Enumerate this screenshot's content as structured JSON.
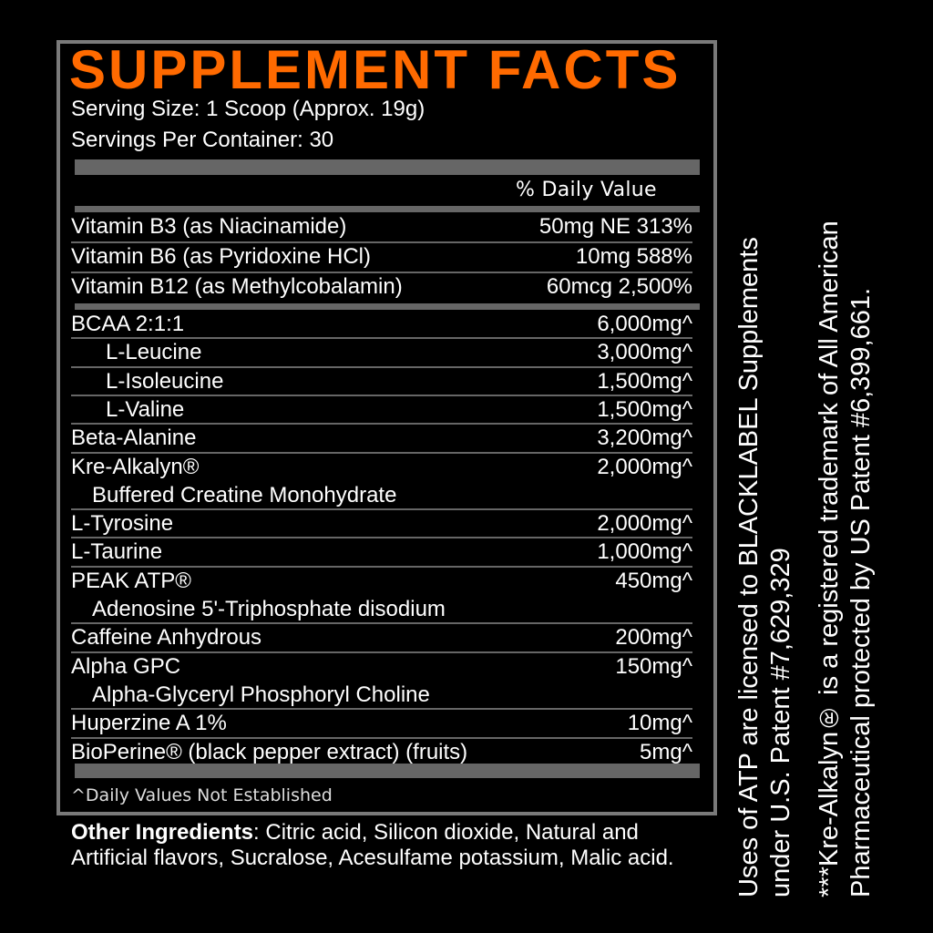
{
  "title": "SUPPLEMENT FACTS",
  "serving_size": "Serving Size:   1 Scoop (Approx. 19g)",
  "servings_per_container": "Servings Per Container: 30",
  "daily_value_header": "% Daily Value",
  "vitamins": [
    {
      "name": "Vitamin B3 (as Niacinamide)",
      "value": "50mg NE 313%"
    },
    {
      "name": "Vitamin B6 (as Pyridoxine HCl)",
      "value": "10mg 588%"
    },
    {
      "name": "Vitamin B12 (as Methylcobalamin)",
      "value": "60mcg 2,500%"
    }
  ],
  "ingredients": [
    {
      "name": "BCAA 2:1:1",
      "value": "6,000mg^"
    },
    {
      "name": "L-Leucine",
      "value": "3,000mg^"
    },
    {
      "name": "L-Isoleucine",
      "value": "1,500mg^"
    },
    {
      "name": "L-Valine",
      "value": "1,500mg^"
    },
    {
      "name": "Beta-Alanine",
      "value": "3,200mg^"
    },
    {
      "name": "Kre-Alkalyn®",
      "value": "2,000mg^",
      "sub": "Buffered Creatine Monohydrate"
    },
    {
      "name": "L-Tyrosine",
      "value": "2,000mg^"
    },
    {
      "name": "L-Taurine",
      "value": "1,000mg^"
    },
    {
      "name": "PEAK ATP®",
      "value": "450mg^",
      "sub": "Adenosine 5'-Triphosphate disodium"
    },
    {
      "name": "Caffeine Anhydrous",
      "value": "200mg^"
    },
    {
      "name": "Alpha GPC",
      "value": "150mg^",
      "sub": "Alpha-Glyceryl Phosphoryl Choline"
    },
    {
      "name": "Huperzine A 1%",
      "value": "10mg^"
    },
    {
      "name": "BioPerine® (black pepper extract) (fruits)",
      "value": "5mg^"
    }
  ],
  "footnote": "^Daily Values Not Established",
  "other_label": "Other Ingredients",
  "other_text": ":  Citric acid, Silicon dioxide, Natural and Artificial flavors, Sucralose, Acesulfame potassium, Malic acid.",
  "side_notes": [
    [
      "Uses of ATP are licensed to BLACKLABEL Supplements",
      "under U.S. Patent #7,629,329"
    ],
    [
      "***Kre-Alkalyn® is a registered trademark of All American",
      "Pharmaceutical protected by US Patent #6,399,661."
    ]
  ],
  "colors": {
    "title": "#ff6a00",
    "bars": "#666666",
    "border": "#7a7a7a"
  }
}
